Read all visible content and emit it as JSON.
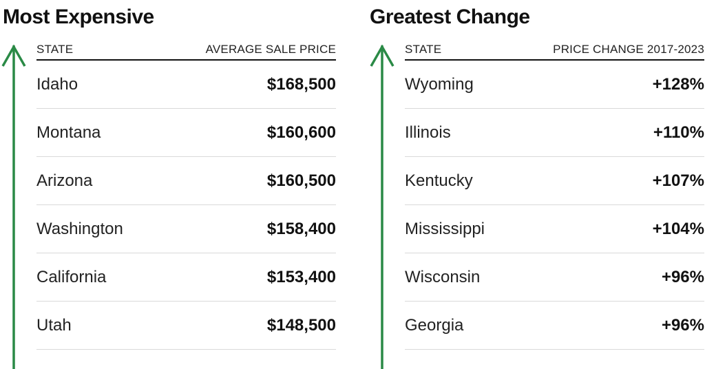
{
  "colors": {
    "arrow": "#2a8a46",
    "text": "#111111",
    "rule": "#d9d9d9"
  },
  "chart_data": [
    {
      "type": "table",
      "title": "Most Expensive",
      "columns": [
        "STATE",
        "AVERAGE SALE PRICE"
      ],
      "rows": [
        {
          "state": "Idaho",
          "value_label": "$168,500",
          "value": 168500
        },
        {
          "state": "Montana",
          "value_label": "$160,600",
          "value": 160600
        },
        {
          "state": "Arizona",
          "value_label": "$160,500",
          "value": 160500
        },
        {
          "state": "Washington",
          "value_label": "$158,400",
          "value": 158400
        },
        {
          "state": "California",
          "value_label": "$153,400",
          "value": 153400
        },
        {
          "state": "Utah",
          "value_label": "$148,500",
          "value": 148500
        }
      ]
    },
    {
      "type": "table",
      "title": "Greatest Change",
      "columns": [
        "STATE",
        "PRICE CHANGE 2017-2023"
      ],
      "rows": [
        {
          "state": "Wyoming",
          "value_label": "+128%",
          "value": 128
        },
        {
          "state": "Illinois",
          "value_label": "+110%",
          "value": 110
        },
        {
          "state": "Kentucky",
          "value_label": "+107%",
          "value": 107
        },
        {
          "state": "Mississippi",
          "value_label": "+104%",
          "value": 104
        },
        {
          "state": "Wisconsin",
          "value_label": "+96%",
          "value": 96
        },
        {
          "state": "Georgia",
          "value_label": "+96%",
          "value": 96
        }
      ]
    }
  ]
}
